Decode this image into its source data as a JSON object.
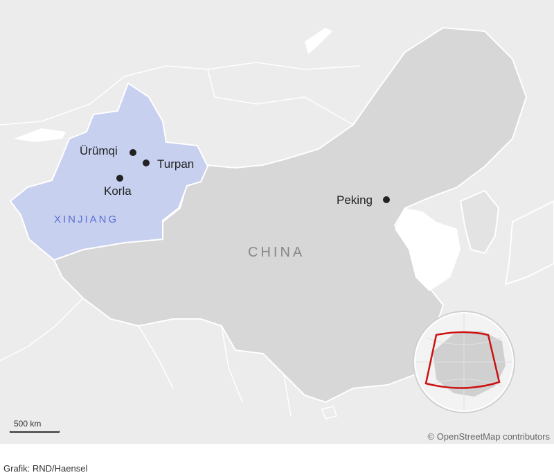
{
  "map": {
    "country_label": "CHINA",
    "region_label": "XINJIANG",
    "cities": [
      {
        "name": "Ürümqi",
        "marker": "dot"
      },
      {
        "name": "Turpan",
        "marker": "dot"
      },
      {
        "name": "Korla",
        "marker": "dot"
      },
      {
        "name": "Peking",
        "marker": "dot"
      }
    ],
    "scale_label": "500 km",
    "attribution": "© OpenStreetMap contributors",
    "colors": {
      "land_other": "#ececec",
      "china": "#d7d7d7",
      "xinjiang": "#c8d0f0",
      "water": "#ffffff",
      "highlight_frame": "#cc1111"
    }
  },
  "footer": {
    "credit": "Grafik: RND/Haensel"
  }
}
